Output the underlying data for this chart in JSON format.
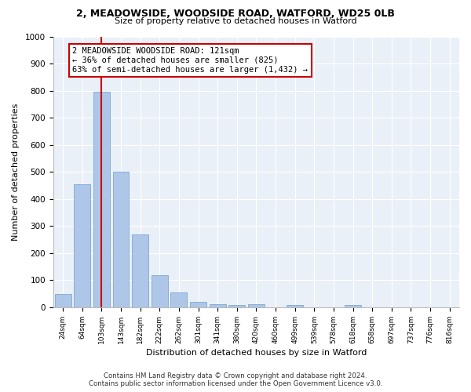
{
  "title1": "2, MEADOWSIDE, WOODSIDE ROAD, WATFORD, WD25 0LB",
  "title2": "Size of property relative to detached houses in Watford",
  "xlabel": "Distribution of detached houses by size in Watford",
  "ylabel": "Number of detached properties",
  "categories": [
    "24sqm",
    "64sqm",
    "103sqm",
    "143sqm",
    "182sqm",
    "222sqm",
    "262sqm",
    "301sqm",
    "341sqm",
    "380sqm",
    "420sqm",
    "460sqm",
    "499sqm",
    "539sqm",
    "578sqm",
    "618sqm",
    "658sqm",
    "697sqm",
    "737sqm",
    "776sqm",
    "816sqm"
  ],
  "values": [
    50,
    455,
    795,
    500,
    270,
    120,
    55,
    20,
    12,
    10,
    12,
    0,
    10,
    0,
    0,
    8,
    0,
    0,
    0,
    0,
    0
  ],
  "bar_color": "#aec6e8",
  "bar_edge_color": "#7aaad0",
  "ref_line_x": 2.0,
  "ref_line_color": "#cc0000",
  "annotation_text": "2 MEADOWSIDE WOODSIDE ROAD: 121sqm\n← 36% of detached houses are smaller (825)\n63% of semi-detached houses are larger (1,432) →",
  "annotation_box_color": "#ffffff",
  "annotation_border_color": "#cc0000",
  "ylim": [
    0,
    1000
  ],
  "yticks": [
    0,
    100,
    200,
    300,
    400,
    500,
    600,
    700,
    800,
    900,
    1000
  ],
  "background_color": "#eaf0f8",
  "footer1": "Contains HM Land Registry data © Crown copyright and database right 2024.",
  "footer2": "Contains public sector information licensed under the Open Government Licence v3.0."
}
